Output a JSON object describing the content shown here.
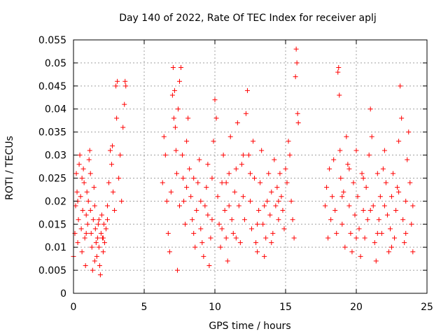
{
  "chart_data": {
    "type": "scatter",
    "title": "Day 140 of 2022, Rate Of TEC Index for receiver aplj",
    "xlabel": "GPS time / hours",
    "ylabel": "ROTI / TECUs",
    "xlim": [
      0,
      25
    ],
    "ylim": [
      0,
      0.055
    ],
    "xticks": [
      0,
      5,
      10,
      15,
      20,
      25
    ],
    "xtick_labels": [
      "0",
      "5",
      "10",
      "15",
      "20",
      "25"
    ],
    "yticks": [
      0,
      0.005,
      0.01,
      0.015,
      0.02,
      0.025,
      0.03,
      0.035,
      0.04,
      0.045,
      0.05,
      0.055
    ],
    "ytick_labels": [
      "0",
      "0.005",
      "0.01",
      "0.015",
      "0.02",
      "0.025",
      "0.03",
      "0.035",
      "0.04",
      "0.045",
      "0.05",
      "0.055"
    ],
    "grid": true,
    "marker": "+",
    "color": "#ff0000",
    "series": [
      {
        "name": "ROTI",
        "points": [
          [
            0.0,
            0.008
          ],
          [
            0.1,
            0.013
          ],
          [
            0.15,
            0.019
          ],
          [
            0.2,
            0.026
          ],
          [
            0.25,
            0.022
          ],
          [
            0.3,
            0.011
          ],
          [
            0.35,
            0.016
          ],
          [
            0.4,
            0.028
          ],
          [
            0.45,
            0.03
          ],
          [
            0.5,
            0.021
          ],
          [
            0.55,
            0.014
          ],
          [
            0.6,
            0.009
          ],
          [
            0.65,
            0.018
          ],
          [
            0.7,
            0.027
          ],
          [
            0.75,
            0.024
          ],
          [
            0.8,
            0.012
          ],
          [
            0.85,
            0.006
          ],
          [
            0.9,
            0.017
          ],
          [
            0.95,
            0.022
          ],
          [
            1.0,
            0.015
          ],
          [
            1.05,
            0.02
          ],
          [
            1.1,
            0.029
          ],
          [
            1.15,
            0.031
          ],
          [
            1.2,
            0.026
          ],
          [
            1.25,
            0.013
          ],
          [
            1.3,
            0.01
          ],
          [
            1.35,
            0.005
          ],
          [
            1.4,
            0.016
          ],
          [
            1.45,
            0.023
          ],
          [
            1.5,
            0.019
          ],
          [
            1.55,
            0.014
          ],
          [
            1.6,
            0.011
          ],
          [
            1.65,
            0.008
          ],
          [
            1.7,
            0.012
          ],
          [
            1.75,
            0.015
          ],
          [
            1.8,
            0.01
          ],
          [
            1.85,
            0.006
          ],
          [
            1.9,
            0.004
          ],
          [
            1.95,
            0.013
          ],
          [
            2.0,
            0.017
          ],
          [
            2.05,
            0.012
          ],
          [
            2.1,
            0.009
          ],
          [
            2.15,
            0.015
          ],
          [
            2.2,
            0.011
          ],
          [
            2.3,
            0.014
          ],
          [
            2.4,
            0.019
          ],
          [
            2.5,
            0.024
          ],
          [
            2.6,
            0.031
          ],
          [
            2.7,
            0.028
          ],
          [
            2.75,
            0.032
          ],
          [
            2.8,
            0.022
          ],
          [
            2.9,
            0.018
          ],
          [
            3.0,
            0.045
          ],
          [
            3.05,
            0.038
          ],
          [
            3.1,
            0.046
          ],
          [
            3.2,
            0.025
          ],
          [
            3.3,
            0.03
          ],
          [
            3.4,
            0.02
          ],
          [
            3.5,
            0.036
          ],
          [
            3.6,
            0.041
          ],
          [
            3.65,
            0.046
          ],
          [
            3.7,
            0.045
          ],
          [
            0.3,
            0.02
          ],
          [
            0.6,
            0.025
          ],
          [
            0.9,
            0.013
          ],
          [
            1.2,
            0.018
          ],
          [
            1.5,
            0.007
          ],
          [
            1.8,
            0.016
          ],
          [
            2.1,
            0.012
          ],
          [
            2.4,
            0.016
          ],
          [
            6.3,
            0.024
          ],
          [
            6.4,
            0.034
          ],
          [
            6.5,
            0.03
          ],
          [
            6.6,
            0.02
          ],
          [
            6.7,
            0.013
          ],
          [
            6.8,
            0.009
          ],
          [
            6.9,
            0.022
          ],
          [
            7.0,
            0.043
          ],
          [
            7.05,
            0.049
          ],
          [
            7.1,
            0.038
          ],
          [
            7.15,
            0.044
          ],
          [
            7.2,
            0.036
          ],
          [
            7.25,
            0.031
          ],
          [
            7.3,
            0.026
          ],
          [
            7.35,
            0.005
          ],
          [
            7.4,
            0.04
          ],
          [
            7.5,
            0.046
          ],
          [
            7.6,
            0.049
          ],
          [
            7.7,
            0.03
          ],
          [
            7.75,
            0.025
          ],
          [
            7.8,
            0.02
          ],
          [
            7.9,
            0.015
          ],
          [
            8.0,
            0.033
          ],
          [
            8.1,
            0.038
          ],
          [
            8.2,
            0.027
          ],
          [
            8.3,
            0.021
          ],
          [
            8.4,
            0.016
          ],
          [
            8.5,
            0.013
          ],
          [
            8.6,
            0.01
          ],
          [
            8.7,
            0.018
          ],
          [
            8.8,
            0.024
          ],
          [
            8.9,
            0.029
          ],
          [
            9.0,
            0.014
          ],
          [
            9.1,
            0.011
          ],
          [
            9.2,
            0.008
          ],
          [
            9.3,
            0.019
          ],
          [
            9.4,
            0.023
          ],
          [
            9.5,
            0.017
          ],
          [
            9.6,
            0.006
          ],
          [
            9.7,
            0.012
          ],
          [
            9.8,
            0.025
          ],
          [
            9.9,
            0.033
          ],
          [
            10.0,
            0.042
          ],
          [
            10.1,
            0.038
          ],
          [
            10.2,
            0.021
          ],
          [
            10.3,
            0.015
          ],
          [
            10.4,
            0.01
          ],
          [
            10.5,
            0.024
          ],
          [
            10.6,
            0.03
          ],
          [
            10.7,
            0.018
          ],
          [
            10.8,
            0.012
          ],
          [
            10.9,
            0.007
          ],
          [
            11.0,
            0.026
          ],
          [
            11.1,
            0.034
          ],
          [
            11.2,
            0.016
          ],
          [
            11.3,
            0.013
          ],
          [
            11.4,
            0.022
          ],
          [
            11.5,
            0.027
          ],
          [
            11.6,
            0.037
          ],
          [
            11.7,
            0.019
          ],
          [
            11.8,
            0.011
          ],
          [
            11.9,
            0.028
          ],
          [
            12.0,
            0.021
          ],
          [
            12.1,
            0.016
          ],
          [
            12.2,
            0.039
          ],
          [
            12.3,
            0.044
          ],
          [
            12.4,
            0.03
          ],
          [
            12.5,
            0.02
          ],
          [
            12.6,
            0.014
          ],
          [
            12.7,
            0.033
          ],
          [
            12.8,
            0.025
          ],
          [
            12.9,
            0.011
          ],
          [
            13.0,
            0.009
          ],
          [
            13.1,
            0.018
          ],
          [
            13.2,
            0.024
          ],
          [
            13.3,
            0.031
          ],
          [
            13.4,
            0.015
          ],
          [
            13.5,
            0.008
          ],
          [
            13.6,
            0.012
          ],
          [
            13.7,
            0.02
          ],
          [
            13.8,
            0.026
          ],
          [
            13.9,
            0.017
          ],
          [
            14.0,
            0.022
          ],
          [
            14.1,
            0.013
          ],
          [
            14.2,
            0.029
          ],
          [
            14.3,
            0.019
          ],
          [
            14.4,
            0.023
          ],
          [
            14.5,
            0.016
          ],
          [
            14.6,
            0.026
          ],
          [
            14.7,
            0.021
          ],
          [
            14.8,
            0.018
          ],
          [
            14.9,
            0.014
          ],
          [
            15.0,
            0.027
          ],
          [
            15.1,
            0.024
          ],
          [
            15.2,
            0.033
          ],
          [
            15.3,
            0.03
          ],
          [
            15.4,
            0.02
          ],
          [
            15.5,
            0.016
          ],
          [
            15.6,
            0.012
          ],
          [
            15.7,
            0.047
          ],
          [
            15.75,
            0.053
          ],
          [
            15.8,
            0.05
          ],
          [
            15.85,
            0.039
          ],
          [
            15.9,
            0.037
          ],
          [
            8.5,
            0.025
          ],
          [
            9.0,
            0.02
          ],
          [
            9.5,
            0.028
          ],
          [
            10.5,
            0.014
          ],
          [
            11.0,
            0.019
          ],
          [
            11.5,
            0.012
          ],
          [
            12.0,
            0.03
          ],
          [
            12.5,
            0.026
          ],
          [
            13.0,
            0.015
          ],
          [
            13.5,
            0.019
          ],
          [
            14.0,
            0.011
          ],
          [
            14.5,
            0.02
          ],
          [
            7.5,
            0.019
          ],
          [
            8.0,
            0.023
          ],
          [
            9.8,
            0.016
          ],
          [
            10.8,
            0.024
          ],
          [
            17.8,
            0.019
          ],
          [
            17.9,
            0.023
          ],
          [
            18.0,
            0.012
          ],
          [
            18.1,
            0.027
          ],
          [
            18.2,
            0.016
          ],
          [
            18.3,
            0.021
          ],
          [
            18.4,
            0.029
          ],
          [
            18.5,
            0.018
          ],
          [
            18.6,
            0.013
          ],
          [
            18.7,
            0.048
          ],
          [
            18.75,
            0.049
          ],
          [
            18.8,
            0.043
          ],
          [
            18.85,
            0.031
          ],
          [
            18.9,
            0.025
          ],
          [
            19.0,
            0.015
          ],
          [
            19.1,
            0.022
          ],
          [
            19.2,
            0.01
          ],
          [
            19.3,
            0.034
          ],
          [
            19.4,
            0.028
          ],
          [
            19.5,
            0.019
          ],
          [
            19.6,
            0.013
          ],
          [
            19.7,
            0.009
          ],
          [
            19.8,
            0.024
          ],
          [
            19.9,
            0.017
          ],
          [
            20.0,
            0.031
          ],
          [
            20.1,
            0.021
          ],
          [
            20.2,
            0.014
          ],
          [
            20.3,
            0.008
          ],
          [
            20.4,
            0.026
          ],
          [
            20.5,
            0.018
          ],
          [
            20.6,
            0.012
          ],
          [
            20.7,
            0.023
          ],
          [
            20.8,
            0.016
          ],
          [
            20.9,
            0.03
          ],
          [
            21.0,
            0.04
          ],
          [
            21.1,
            0.034
          ],
          [
            21.2,
            0.019
          ],
          [
            21.3,
            0.011
          ],
          [
            21.4,
            0.007
          ],
          [
            21.5,
            0.026
          ],
          [
            21.6,
            0.016
          ],
          [
            21.7,
            0.021
          ],
          [
            21.8,
            0.013
          ],
          [
            21.9,
            0.027
          ],
          [
            22.0,
            0.031
          ],
          [
            22.1,
            0.024
          ],
          [
            22.2,
            0.017
          ],
          [
            22.3,
            0.009
          ],
          [
            22.4,
            0.014
          ],
          [
            22.5,
            0.021
          ],
          [
            22.6,
            0.026
          ],
          [
            22.7,
            0.012
          ],
          [
            22.8,
            0.018
          ],
          [
            22.9,
            0.023
          ],
          [
            23.0,
            0.033
          ],
          [
            23.1,
            0.045
          ],
          [
            23.2,
            0.038
          ],
          [
            23.3,
            0.016
          ],
          [
            23.4,
            0.011
          ],
          [
            23.5,
            0.02
          ],
          [
            23.6,
            0.029
          ],
          [
            23.7,
            0.035
          ],
          [
            23.8,
            0.024
          ],
          [
            23.9,
            0.015
          ],
          [
            24.0,
            0.009
          ],
          [
            19.0,
            0.021
          ],
          [
            19.5,
            0.027
          ],
          [
            20.0,
            0.012
          ],
          [
            20.5,
            0.025
          ],
          [
            21.0,
            0.018
          ],
          [
            21.5,
            0.013
          ],
          [
            22.0,
            0.019
          ],
          [
            22.5,
            0.01
          ],
          [
            23.0,
            0.022
          ],
          [
            23.5,
            0.013
          ],
          [
            24.0,
            0.019
          ]
        ]
      }
    ]
  }
}
